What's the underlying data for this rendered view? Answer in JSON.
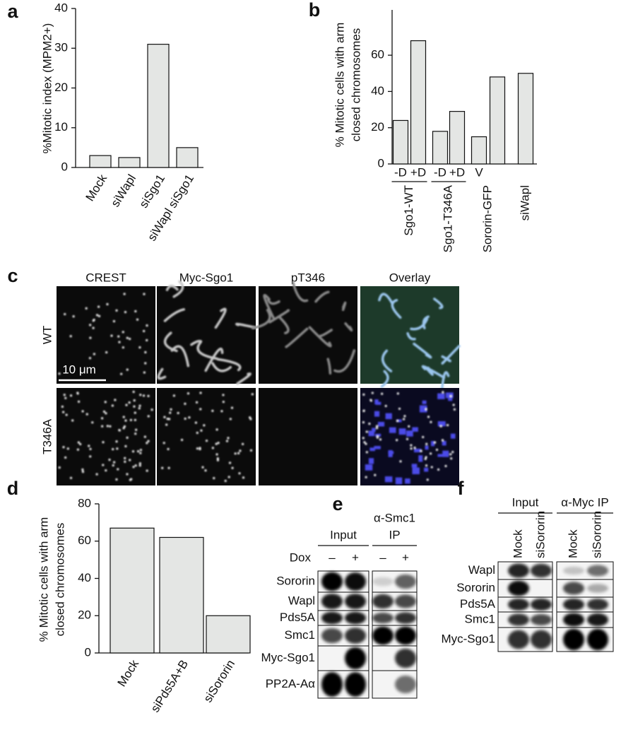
{
  "chart_data": [
    {
      "type": "bar",
      "panel": "a",
      "ylabel": [
        "%Mitotic index (MPM2+)"
      ],
      "categories": [
        "Mock",
        "siWapl",
        "siSgo1",
        "siWapl siSgo1"
      ],
      "values": [
        3,
        2.5,
        31,
        5
      ],
      "color": "#e4e6e4",
      "ylim": [
        0,
        40
      ],
      "yticks": [
        0,
        10,
        20,
        30,
        40
      ]
    },
    {
      "type": "bar",
      "panel": "b",
      "ylabel": [
        "% Mitotic cells with arm",
        "closed chromosomes"
      ],
      "categories": [
        "-D",
        "+D",
        "-D",
        "+D",
        "V",
        null,
        null
      ],
      "groups": [
        "Sgo1-WT",
        "Sgo1-T346A",
        "Sororin-GFP",
        "siWapl"
      ],
      "values": [
        24,
        68,
        18,
        29,
        15,
        48,
        50
      ],
      "color": "#e4e6e4",
      "ylim": [
        0,
        85
      ],
      "yticks": [
        0,
        20,
        40,
        60
      ]
    },
    {
      "type": "bar",
      "panel": "d",
      "ylabel": [
        "% Mitotic cells with arm",
        "closed chromosomes"
      ],
      "categories": [
        "Mock",
        "siPds5A+B",
        "siSororin"
      ],
      "values": [
        67,
        62,
        20
      ],
      "color": "#e4e6e4",
      "ylim": [
        0,
        80
      ],
      "yticks": [
        0,
        20,
        40,
        60,
        80
      ]
    }
  ],
  "microscopy": {
    "panel": "c",
    "columns": [
      "CREST",
      "Myc-Sgo1",
      "pT346",
      "Overlay"
    ],
    "rows": [
      "WT",
      "T346A"
    ],
    "scale_bar": "10 μm"
  },
  "blot_e": {
    "panel": "e",
    "groups": [
      [
        "Input"
      ],
      [
        "α-Smc1",
        "IP"
      ]
    ],
    "treatment": "Dox",
    "lanes": [
      "–",
      "+",
      "–",
      "+"
    ],
    "rows": [
      "Sororin",
      "Wapl",
      "Pds5A",
      "Smc1",
      "Myc-Sgo1",
      "PP2A-Aα"
    ]
  },
  "blot_f": {
    "panel": "f",
    "groups": [
      [
        "Input"
      ],
      [
        "α-Myc IP"
      ]
    ],
    "lanes": [
      "Mock",
      "siSororin",
      "Mock",
      "siSororin"
    ],
    "rows": [
      "Wapl",
      "Sororin",
      "Pds5A",
      "Smc1",
      "Myc-Sgo1"
    ]
  }
}
